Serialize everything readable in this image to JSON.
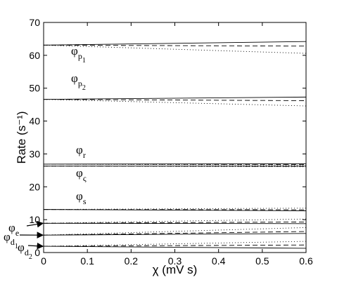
{
  "chart_data": {
    "type": "line",
    "xlabel": "χ (mV s)",
    "ylabel": "Rate (s⁻¹)",
    "xlim": [
      0,
      0.6
    ],
    "ylim": [
      0,
      70
    ],
    "xticks": [
      "0",
      "0.1",
      "0.2",
      "0.3",
      "0.4",
      "0.5",
      "0.6"
    ],
    "yticks": [
      "0",
      "10",
      "20",
      "30",
      "40",
      "50",
      "60",
      "70"
    ],
    "grid": false,
    "legend": "none",
    "line_styles": [
      "solid",
      "dashed",
      "dotted"
    ],
    "groups": [
      {
        "label": "φ",
        "sub": "p",
        "subsub": "1",
        "y0": 63.1,
        "end": [
          64.2,
          62.8,
          60.6
        ]
      },
      {
        "label": "φ",
        "sub": "p",
        "subsub": "2",
        "y0": 46.6,
        "end": [
          47.3,
          46.2,
          44.6
        ]
      },
      {
        "label": "φ",
        "sub": "r",
        "subsub": "",
        "y0": 26.9,
        "end": [
          27.0,
          26.8,
          26.6
        ]
      },
      {
        "label": "φ",
        "sub": "ς",
        "subsub": "",
        "y0": 26.3,
        "end": [
          26.3,
          26.2,
          26.1
        ]
      },
      {
        "label": "φ",
        "sub": "s",
        "subsub": "",
        "y0": 13.1,
        "end": [
          12.7,
          13.0,
          13.5
        ]
      },
      {
        "label": "φ",
        "sub": "e",
        "subsub": "",
        "y0": 8.9,
        "end": [
          8.8,
          9.3,
          10.2
        ]
      },
      {
        "label": "φ",
        "sub": "d",
        "subsub": "1",
        "y0": 5.3,
        "end": [
          5.8,
          6.4,
          7.6
        ]
      },
      {
        "label": "φ",
        "sub": "d",
        "subsub": "2",
        "y0": 1.9,
        "end": [
          1.3,
          2.3,
          3.4
        ]
      }
    ]
  }
}
